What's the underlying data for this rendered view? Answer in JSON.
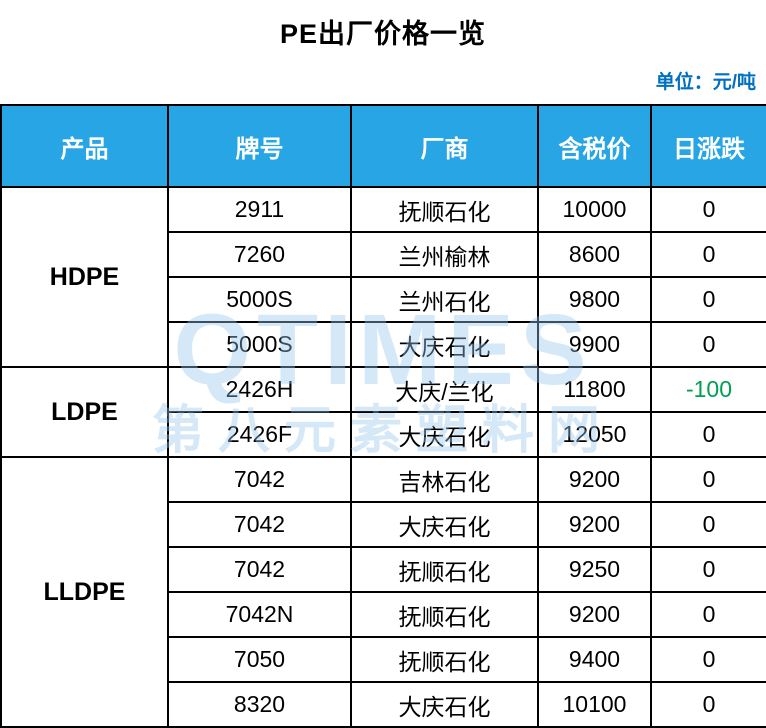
{
  "title": "PE出厂价格一览",
  "unit_label": "单位：元/吨",
  "watermark": {
    "line1": "QTIMES",
    "line2": "第八元素塑料网"
  },
  "colors": {
    "header_bg": "#27A5E5",
    "unit_text": "#0070C0",
    "negative_change": "#00A050",
    "border": "#000000"
  },
  "table": {
    "headers": [
      "产品",
      "牌号",
      "厂商",
      "含税价",
      "日涨跌"
    ],
    "groups": [
      {
        "product": "HDPE",
        "rows": [
          {
            "grade": "2911",
            "maker": "抚顺石化",
            "price": "10000",
            "change": "0"
          },
          {
            "grade": "7260",
            "maker": "兰州榆林",
            "price": "8600",
            "change": "0"
          },
          {
            "grade": "5000S",
            "maker": "兰州石化",
            "price": "9800",
            "change": "0"
          },
          {
            "grade": "5000S",
            "maker": "大庆石化",
            "price": "9900",
            "change": "0"
          }
        ]
      },
      {
        "product": "LDPE",
        "rows": [
          {
            "grade": "2426H",
            "maker": "大庆/兰化",
            "price": "11800",
            "change": "-100"
          },
          {
            "grade": "2426F",
            "maker": "大庆石化",
            "price": "12050",
            "change": "0"
          }
        ]
      },
      {
        "product": "LLDPE",
        "rows": [
          {
            "grade": "7042",
            "maker": "吉林石化",
            "price": "9200",
            "change": "0"
          },
          {
            "grade": "7042",
            "maker": "大庆石化",
            "price": "9200",
            "change": "0"
          },
          {
            "grade": "7042",
            "maker": "抚顺石化",
            "price": "9250",
            "change": "0"
          },
          {
            "grade": "7042N",
            "maker": "抚顺石化",
            "price": "9200",
            "change": "0"
          },
          {
            "grade": "7050",
            "maker": "抚顺石化",
            "price": "9400",
            "change": "0"
          },
          {
            "grade": "8320",
            "maker": "大庆石化",
            "price": "10100",
            "change": "0"
          }
        ]
      }
    ]
  }
}
